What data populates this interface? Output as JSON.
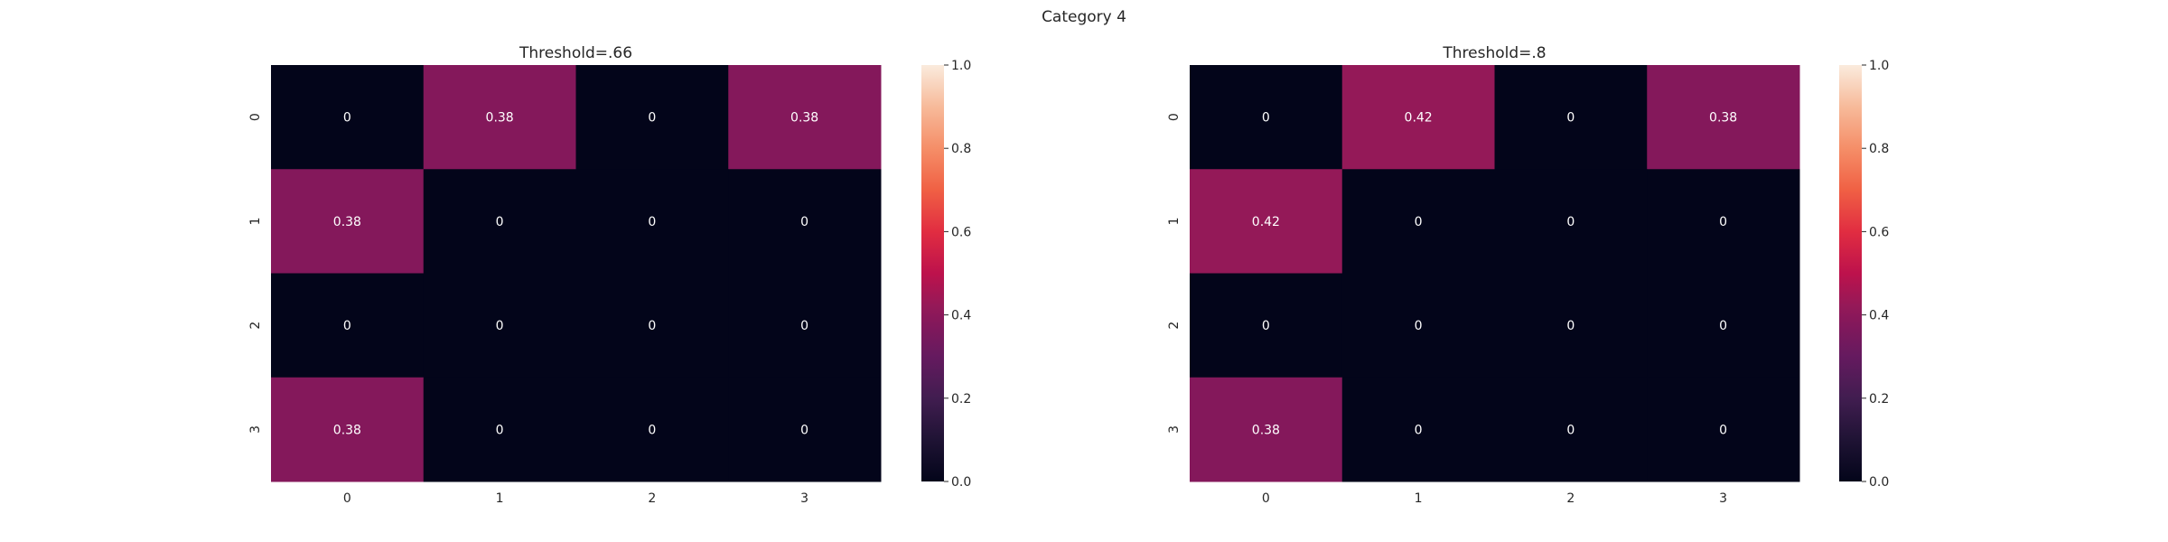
{
  "figure_title": "Category 4",
  "chart_data": [
    {
      "type": "heatmap",
      "title": "Threshold=.66",
      "xlabel": "",
      "ylabel": "",
      "x_categories": [
        "0",
        "1",
        "2",
        "3"
      ],
      "y_categories": [
        "0",
        "1",
        "2",
        "3"
      ],
      "values": [
        [
          0,
          0.38,
          0,
          0.38
        ],
        [
          0.38,
          0,
          0,
          0
        ],
        [
          0,
          0,
          0,
          0
        ],
        [
          0.38,
          0,
          0,
          0
        ]
      ],
      "annotations": true,
      "colormap": "rocket",
      "vmin": 0,
      "vmax": 1,
      "colorbar_ticks": [
        "0.0",
        "0.2",
        "0.4",
        "0.6",
        "0.8",
        "1.0"
      ],
      "grid": false
    },
    {
      "type": "heatmap",
      "title": "Threshold=.8",
      "xlabel": "",
      "ylabel": "",
      "x_categories": [
        "0",
        "1",
        "2",
        "3"
      ],
      "y_categories": [
        "0",
        "1",
        "2",
        "3"
      ],
      "values": [
        [
          0,
          0.42,
          0,
          0.38
        ],
        [
          0.42,
          0,
          0,
          0
        ],
        [
          0,
          0,
          0,
          0
        ],
        [
          0.38,
          0,
          0,
          0
        ]
      ],
      "annotations": true,
      "colormap": "rocket",
      "vmin": 0,
      "vmax": 1,
      "colorbar_ticks": [
        "0.0",
        "0.2",
        "0.4",
        "0.6",
        "0.8",
        "1.0"
      ],
      "grid": false
    }
  ]
}
